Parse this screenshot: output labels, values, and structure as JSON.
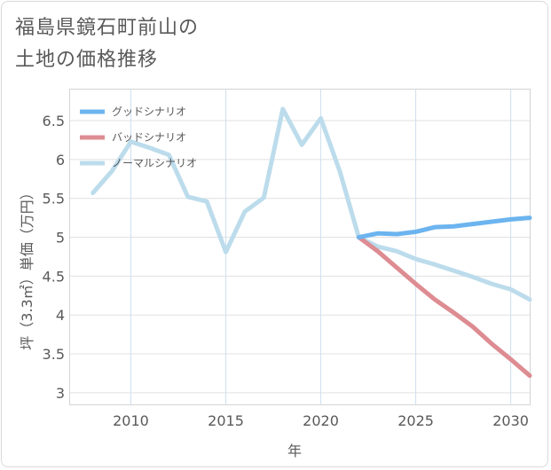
{
  "title_lines": [
    "福島県鏡石町前山の",
    "土地の価格推移"
  ],
  "chart_data": {
    "type": "line",
    "xlabel": "年",
    "ylabel": "坪（3.3㎡）単価（万円）",
    "xlim": [
      2006.8,
      2031
    ],
    "ylim": [
      2.85,
      6.9
    ],
    "x_ticks": [
      2010,
      2015,
      2020,
      2025,
      2030
    ],
    "y_ticks": [
      3,
      3.5,
      4,
      4.5,
      5,
      5.5,
      6,
      6.5
    ],
    "x_tick_labels": [
      "2010",
      "2015",
      "2020",
      "2025",
      "2030"
    ],
    "y_tick_labels": [
      "3",
      "3.5",
      "4",
      "4.5",
      "5",
      "5.5",
      "6",
      "6.5"
    ],
    "grid": true,
    "legend_position": "top-left",
    "series": [
      {
        "name": "グッドシナリオ",
        "color": "#6cb4ef",
        "x": [
          2022,
          2023,
          2024,
          2025,
          2026,
          2027,
          2028,
          2029,
          2030,
          2031
        ],
        "y": [
          5.0,
          5.05,
          5.04,
          5.07,
          5.13,
          5.14,
          5.17,
          5.2,
          5.23,
          5.25
        ]
      },
      {
        "name": "バッドシナリオ",
        "color": "#dd8c92",
        "x": [
          2022,
          2023,
          2024,
          2025,
          2026,
          2027,
          2028,
          2029,
          2030,
          2031
        ],
        "y": [
          5.0,
          4.82,
          4.61,
          4.4,
          4.2,
          4.03,
          3.85,
          3.63,
          3.43,
          3.22
        ]
      },
      {
        "name": "ノーマルシナリオ",
        "color": "#bcdcec",
        "x": [
          2008,
          2009,
          2010,
          2011,
          2012,
          2013,
          2014,
          2015,
          2016,
          2017,
          2018,
          2019,
          2020,
          2021,
          2022,
          2023,
          2024,
          2025,
          2026,
          2027,
          2028,
          2029,
          2030,
          2031
        ],
        "y": [
          5.57,
          5.85,
          6.23,
          6.15,
          6.06,
          5.52,
          5.46,
          4.81,
          5.33,
          5.51,
          6.65,
          6.19,
          6.53,
          5.85,
          5.0,
          4.88,
          4.82,
          4.72,
          4.65,
          4.57,
          4.49,
          4.4,
          4.33,
          4.2
        ]
      }
    ]
  }
}
